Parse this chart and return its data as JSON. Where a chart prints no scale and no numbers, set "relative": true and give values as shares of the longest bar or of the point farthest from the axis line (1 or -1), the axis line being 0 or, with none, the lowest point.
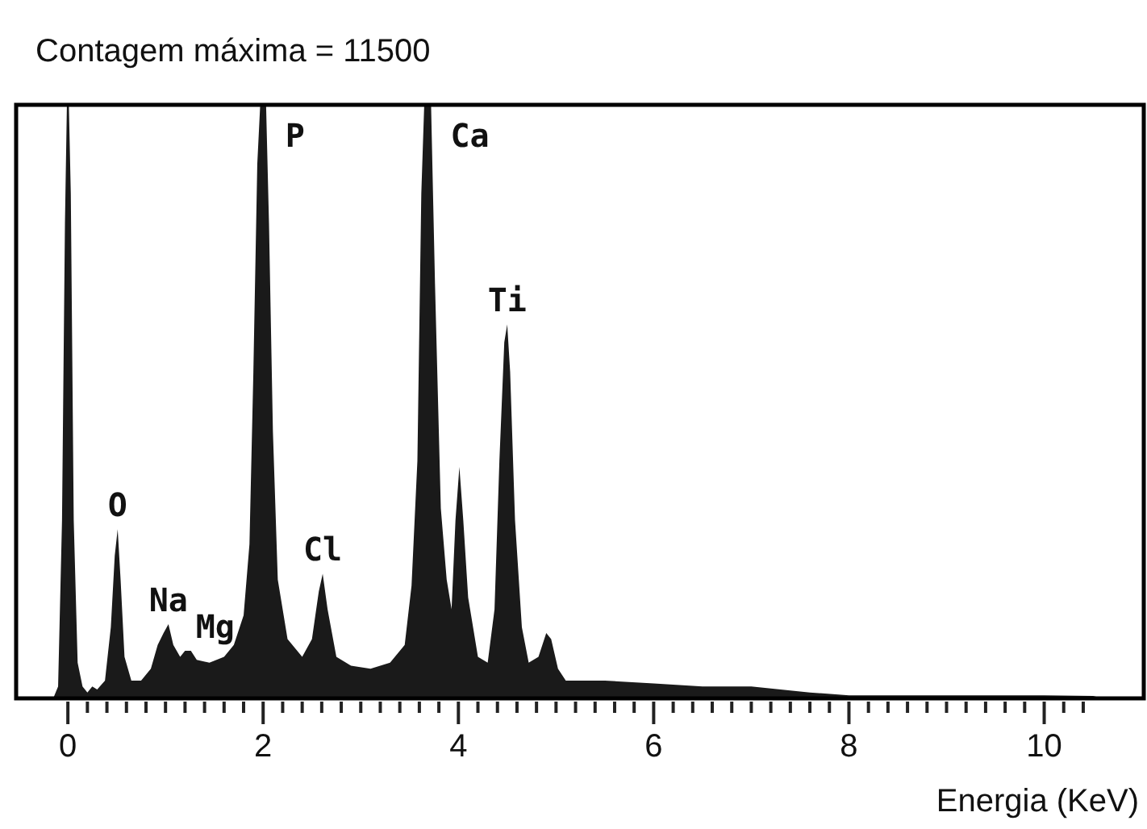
{
  "chart_data": {
    "type": "area",
    "title": "Contagem máxima = 11500",
    "xlabel": "Energia (KeV)",
    "relative": true,
    "xlim": [
      -0.53,
      11.02
    ],
    "xticks": [
      0,
      {
        "value": 0.2,
        "label": null
      },
      {
        "value": 0.4,
        "label": null
      },
      {
        "value": 0.6,
        "label": null
      },
      {
        "value": 0.8,
        "label": null
      },
      {
        "value": 1,
        "label": null
      },
      {
        "value": 1.2,
        "label": null
      },
      {
        "value": 1.4,
        "label": null
      },
      {
        "value": 1.6,
        "label": null
      },
      {
        "value": 1.8,
        "label": null
      },
      2,
      {
        "value": 2.2,
        "label": null
      },
      {
        "value": 2.4,
        "label": null
      },
      {
        "value": 2.6,
        "label": null
      },
      {
        "value": 2.8,
        "label": null
      },
      {
        "value": 3,
        "label": null
      },
      {
        "value": 3.2,
        "label": null
      },
      {
        "value": 3.4,
        "label": null
      },
      {
        "value": 3.6,
        "label": null
      },
      {
        "value": 3.8,
        "label": null
      },
      4,
      {
        "value": 4.2,
        "label": null
      },
      {
        "value": 4.4,
        "label": null
      },
      {
        "value": 4.6,
        "label": null
      },
      {
        "value": 4.8,
        "label": null
      },
      {
        "value": 5,
        "label": null
      },
      {
        "value": 5.2,
        "label": null
      },
      {
        "value": 5.4,
        "label": null
      },
      {
        "value": 5.6,
        "label": null
      },
      {
        "value": 5.8,
        "label": null
      },
      6,
      {
        "value": 6.2,
        "label": null
      },
      {
        "value": 6.4,
        "label": null
      },
      {
        "value": 6.6,
        "label": null
      },
      {
        "value": 6.8,
        "label": null
      },
      {
        "value": 7,
        "label": null
      },
      {
        "value": 7.2,
        "label": null
      },
      {
        "value": 7.4,
        "label": null
      },
      {
        "value": 7.6,
        "label": null
      },
      {
        "value": 7.8,
        "label": null
      },
      8,
      {
        "value": 8.2,
        "label": null
      },
      {
        "value": 8.4,
        "label": null
      },
      {
        "value": 8.6,
        "label": null
      },
      {
        "value": 8.8,
        "label": null
      },
      {
        "value": 9,
        "label": null
      },
      {
        "value": 9.2,
        "label": null
      },
      {
        "value": 9.4,
        "label": null
      },
      {
        "value": 9.6,
        "label": null
      },
      {
        "value": 9.8,
        "label": null
      },
      10,
      {
        "value": 10.2,
        "label": null
      },
      {
        "value": 10.4,
        "label": null
      }
    ],
    "series": [
      {
        "color": "#1a1a1a",
        "x": [
          -0.15,
          -0.1,
          -0.06,
          -0.03,
          -0.01,
          0.01,
          0.03,
          0.06,
          0.1,
          0.15,
          0.2,
          0.25,
          0.3,
          0.38,
          0.44,
          0.48,
          0.51,
          0.54,
          0.58,
          0.65,
          0.75,
          0.85,
          0.92,
          0.98,
          1.03,
          1.08,
          1.15,
          1.2,
          1.26,
          1.32,
          1.45,
          1.6,
          1.7,
          1.8,
          1.86,
          1.9,
          1.94,
          1.97,
          2.03,
          2.06,
          2.1,
          2.15,
          2.25,
          2.4,
          2.5,
          2.57,
          2.61,
          2.66,
          2.75,
          2.9,
          3.1,
          3.3,
          3.45,
          3.52,
          3.58,
          3.62,
          3.65,
          3.72,
          3.76,
          3.82,
          3.88,
          3.93,
          3.97,
          4.01,
          4.05,
          4.1,
          4.2,
          4.3,
          4.37,
          4.42,
          4.47,
          4.5,
          4.53,
          4.58,
          4.65,
          4.72,
          4.82,
          4.9,
          4.95,
          5.02,
          5.1,
          5.5,
          6,
          6.5,
          7,
          7.3,
          7.6,
          8,
          9,
          10,
          10.5,
          10.6
        ],
        "values": [
          0,
          0.02,
          0.3,
          0.8,
          1,
          1,
          0.85,
          0.3,
          0.06,
          0.02,
          0.01,
          0.02,
          0.015,
          0.03,
          0.12,
          0.24,
          0.285,
          0.2,
          0.07,
          0.03,
          0.03,
          0.05,
          0.09,
          0.11,
          0.125,
          0.09,
          0.07,
          0.08,
          0.08,
          0.065,
          0.06,
          0.07,
          0.09,
          0.14,
          0.26,
          0.55,
          0.9,
          1,
          1,
          0.8,
          0.45,
          0.2,
          0.1,
          0.07,
          0.1,
          0.18,
          0.21,
          0.15,
          0.07,
          0.055,
          0.05,
          0.06,
          0.09,
          0.19,
          0.4,
          0.85,
          1,
          1,
          0.7,
          0.32,
          0.2,
          0.15,
          0.3,
          0.39,
          0.3,
          0.17,
          0.07,
          0.06,
          0.15,
          0.4,
          0.6,
          0.63,
          0.55,
          0.3,
          0.12,
          0.06,
          0.07,
          0.11,
          0.1,
          0.05,
          0.03,
          0.03,
          0.025,
          0.02,
          0.02,
          0.015,
          0.01,
          0.005,
          0.005,
          0.005,
          0.004,
          0
        ]
      }
    ],
    "annotations": [
      {
        "text": "P",
        "x": 2.03,
        "y": 1
      },
      {
        "text": "Ca",
        "x": 3.72,
        "y": 1
      },
      {
        "text": "Ti",
        "x": 4.5,
        "y": 0.63
      },
      {
        "text": "O",
        "x": 0.51,
        "y": 0.285
      },
      {
        "text": "Na",
        "x": 1.03,
        "y": 0.125
      },
      {
        "text": "Mg",
        "x": 1.26,
        "y": 0.08
      },
      {
        "text": "Cl",
        "x": 2.61,
        "y": 0.21
      }
    ]
  }
}
